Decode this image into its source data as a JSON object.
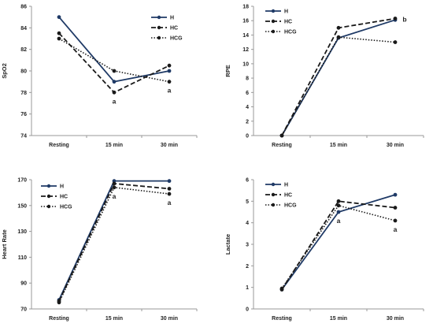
{
  "colors": {
    "H": "#1f3a66",
    "HC": "#1a1a1a",
    "HCG": "#1a1a1a"
  },
  "chart_data": [
    {
      "type": "line",
      "ylabel": "SpO2",
      "categories": [
        "Resting",
        "15 min",
        "30 min"
      ],
      "ylim": [
        74,
        86
      ],
      "yticks": [
        74,
        76,
        78,
        80,
        82,
        84,
        86
      ],
      "series": [
        {
          "name": "H",
          "values": [
            85,
            79,
            80
          ]
        },
        {
          "name": "HC",
          "values": [
            83.5,
            78,
            80.5
          ]
        },
        {
          "name": "HCG",
          "values": [
            83,
            80,
            79
          ]
        }
      ],
      "annotations": [
        {
          "category": "15 min",
          "text": "a"
        },
        {
          "category": "30 min",
          "text": "a"
        }
      ],
      "legend": "top-right"
    },
    {
      "type": "line",
      "ylabel": "RPE",
      "categories": [
        "Resting",
        "15 min",
        "30 min"
      ],
      "ylim": [
        0,
        18
      ],
      "yticks": [
        0,
        2,
        4,
        6,
        8,
        10,
        12,
        14,
        16,
        18
      ],
      "series": [
        {
          "name": "H",
          "values": [
            0,
            13.6,
            16.1
          ]
        },
        {
          "name": "HC",
          "values": [
            0,
            15,
            16.3
          ]
        },
        {
          "name": "HCG",
          "values": [
            0,
            13.7,
            13
          ]
        }
      ],
      "annotations": [
        {
          "category": "30 min",
          "text": "b"
        }
      ],
      "legend": "top-left"
    },
    {
      "type": "line",
      "ylabel": "Heart Rate",
      "categories": [
        "Resting",
        "15 min",
        "30 min"
      ],
      "ylim": [
        70,
        170
      ],
      "yticks": [
        70,
        90,
        110,
        130,
        150,
        170
      ],
      "series": [
        {
          "name": "H",
          "values": [
            77,
            169,
            169
          ]
        },
        {
          "name": "HC",
          "values": [
            76,
            167,
            163
          ]
        },
        {
          "name": "HCG",
          "values": [
            75,
            164,
            159
          ]
        }
      ],
      "annotations": [
        {
          "category": "15 min",
          "text": "a"
        },
        {
          "category": "30 min",
          "text": "a"
        }
      ],
      "legend": "top-left"
    },
    {
      "type": "line",
      "ylabel": "Lactate",
      "categories": [
        "Resting",
        "15 min",
        "30 min"
      ],
      "ylim": [
        0,
        6
      ],
      "yticks": [
        0,
        1,
        2,
        3,
        4,
        5,
        6
      ],
      "series": [
        {
          "name": "H",
          "values": [
            0.9,
            4.5,
            5.3
          ]
        },
        {
          "name": "HC",
          "values": [
            0.9,
            5,
            4.7
          ]
        },
        {
          "name": "HCG",
          "values": [
            0.95,
            4.8,
            4.1
          ]
        }
      ],
      "annotations": [
        {
          "category": "15 min",
          "text": "a"
        },
        {
          "category": "30 min",
          "text": "a"
        }
      ],
      "legend": "top-left"
    }
  ]
}
